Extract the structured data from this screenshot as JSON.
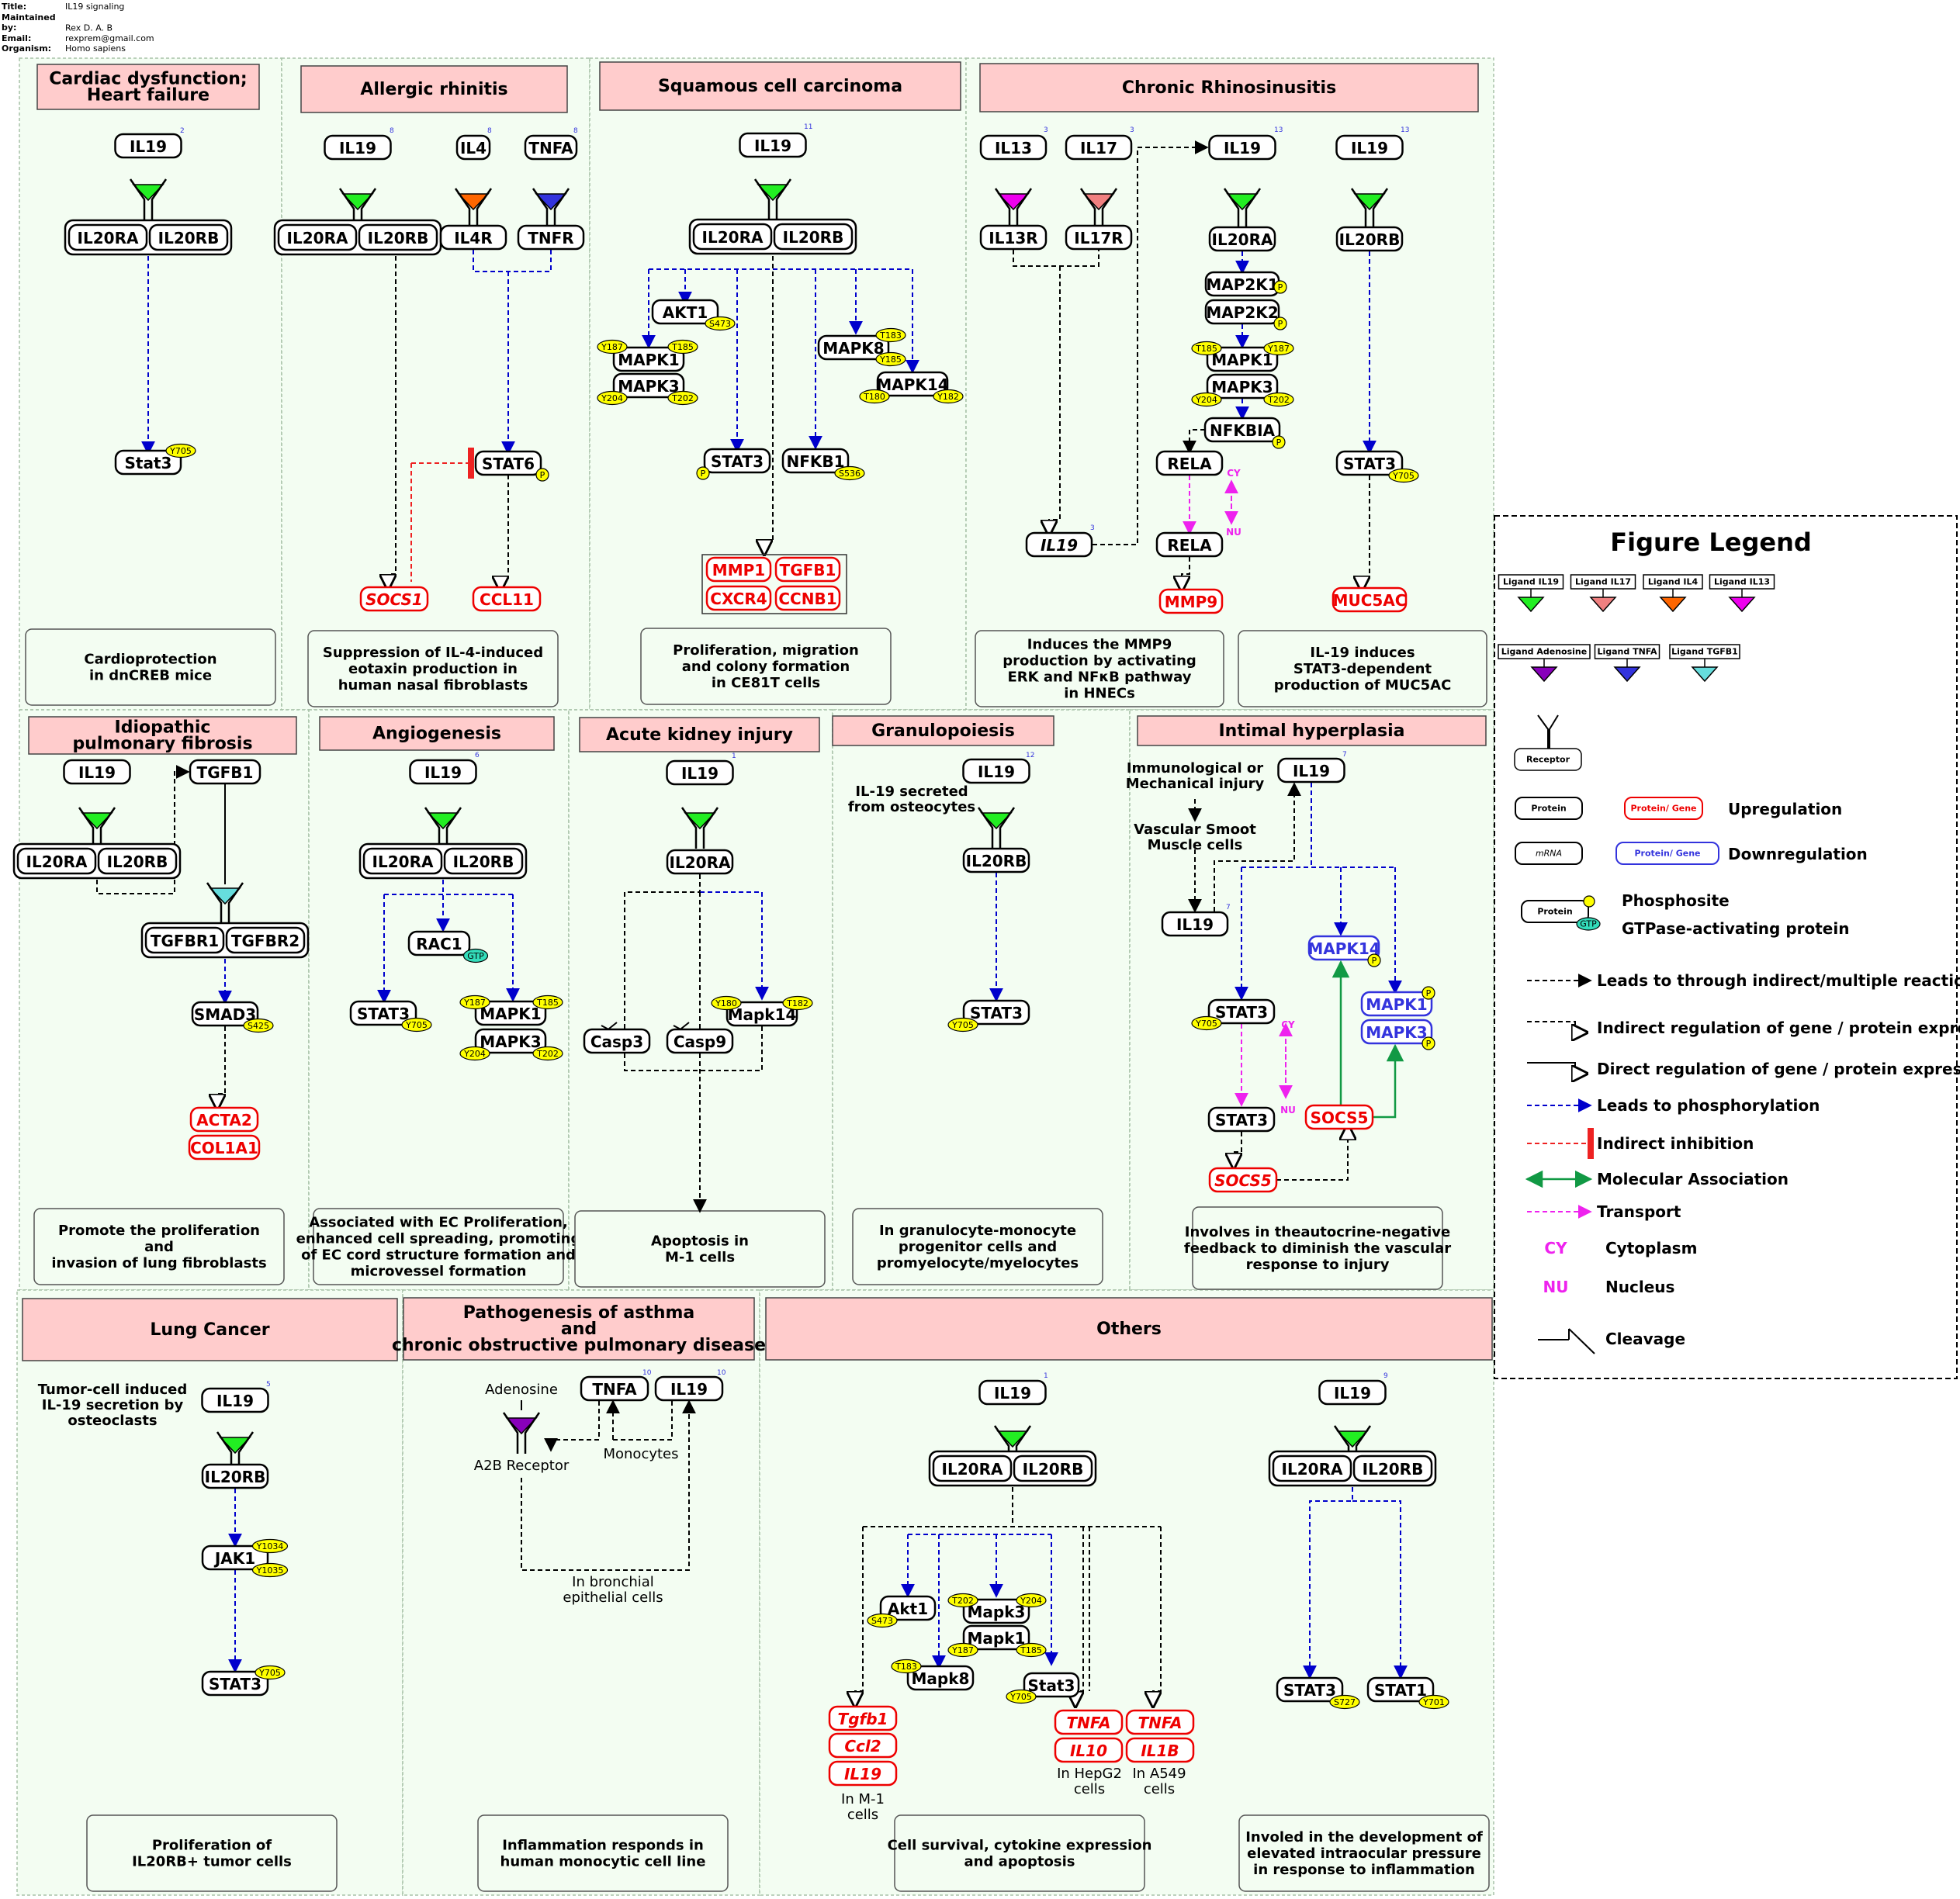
{
  "header": {
    "title_label": "Title:",
    "title": "IL19 signaling",
    "maintained_label": "Maintained by:",
    "maintained": "Rex D. A. B",
    "email_label": "Email:",
    "email": "rexprem@gmail.com",
    "organism_label": "Organism:",
    "organism": "Homo sapiens"
  },
  "colors": {
    "IL19": "#22ee22",
    "IL17": "#f08080",
    "IL4": "#ff6600",
    "IL13": "#ee00ee",
    "Adenosine": "#8800bb",
    "TNFA": "#3333dd",
    "TGFB1": "#66dddd",
    "panel": "#f3fdf2",
    "title": "#ffcccc",
    "phospho": "#ffff00",
    "gtp": "#33ddbb"
  },
  "panels": [
    {
      "id": "p1",
      "title": [
        "Cardiac dysfunction;",
        "Heart failure"
      ],
      "summary": [
        "Cardioprotection",
        "in dnCREB mice"
      ]
    },
    {
      "id": "p2",
      "title": [
        "Allergic rhinitis"
      ],
      "summary": [
        "Suppression of IL-4-induced",
        "eotaxin production in",
        "human nasal fibroblasts"
      ]
    },
    {
      "id": "p3",
      "title": [
        "Squamous cell carcinoma"
      ],
      "summary": [
        "Proliferation, migration",
        "and colony formation",
        "in CE81T cells"
      ]
    },
    {
      "id": "p4",
      "title": [
        "Chronic Rhinosinusitis"
      ],
      "summary": [
        "Induces the MMP9",
        "production by activating",
        "ERK and NFκB pathway",
        "in HNECs"
      ],
      "summary2": [
        "IL-19 induces",
        "STAT3-dependent",
        "production of MUC5AC"
      ]
    },
    {
      "id": "p5",
      "title": [
        "Idiopathic",
        "pulmonary fibrosis"
      ],
      "summary": [
        "Promote the proliferation",
        "and",
        "invasion of lung fibroblasts"
      ]
    },
    {
      "id": "p6",
      "title": [
        "Angiogenesis"
      ],
      "summary": [
        "Associated with EC Proliferation,",
        "enhanced cell spreading, promoting",
        "of EC cord structure formation and",
        "microvessel formation"
      ]
    },
    {
      "id": "p7",
      "title": [
        "Acute kidney injury"
      ],
      "summary": [
        "Apoptosis in",
        "M-1 cells"
      ]
    },
    {
      "id": "p8",
      "title": [
        "Granulopoiesis"
      ],
      "summary": [
        "In granulocyte-monocyte",
        "progenitor cells and",
        "promyelocyte/myelocytes"
      ]
    },
    {
      "id": "p9",
      "title": [
        "Intimal hyperplasia"
      ],
      "summary": [
        "Involves in theautocrine-negative",
        "feedback to diminish the vascular",
        "response to injury"
      ]
    },
    {
      "id": "p10",
      "title": [
        "Lung Cancer"
      ],
      "summary": [
        "Proliferation of",
        "IL20RB+ tumor cells"
      ]
    },
    {
      "id": "p11",
      "title": [
        "Pathogenesis of asthma",
        "and",
        "chronic obstructive pulmonary disease"
      ],
      "summary": [
        "Inflammation responds in",
        "human monocytic cell line"
      ]
    },
    {
      "id": "p12",
      "title": [
        "Others"
      ],
      "summary": [
        "Cell survival, cytokine expression",
        "and apoptosis"
      ],
      "summary2": [
        "Involed in the development of",
        "elevated intraocular pressure",
        "in response to inflammation"
      ]
    }
  ],
  "nodes": {
    "IL19": "IL19",
    "IL20RA": "IL20RA",
    "IL20RB": "IL20RB",
    "Stat3": "Stat3",
    "IL4": "IL4",
    "TNFA": "TNFA",
    "IL4R": "IL4R",
    "TNFR": "TNFR",
    "STAT6": "STAT6",
    "SOCS1": "SOCS1",
    "CCL11": "CCL11",
    "AKT1": "AKT1",
    "MAPK1": "MAPK1",
    "MAPK3": "MAPK3",
    "MAPK8": "MAPK8",
    "MAPK14": "MAPK14",
    "STAT3": "STAT3",
    "NFKB1": "NFKB1",
    "MMP1": "MMP1",
    "TGFB1": "TGFB1",
    "CXCR4": "CXCR4",
    "CCNB1": "CCNB1",
    "IL13": "IL13",
    "IL17": "IL17",
    "IL13R": "IL13R",
    "IL17R": "IL17R",
    "MAP2K1": "MAP2K1",
    "MAP2K2": "MAP2K2",
    "NFKBIA": "NFKBIA",
    "RELA": "RELA",
    "MMP9": "MMP9",
    "MUC5AC": "MUC5AC",
    "TGFBR1": "TGFBR1",
    "TGFBR2": "TGFBR2",
    "SMAD3": "SMAD3",
    "ACTA2": "ACTA2",
    "COL1A1": "COL1A1",
    "RAC1": "RAC1",
    "Casp3": "Casp3",
    "Casp9": "Casp9",
    "Mapk14": "Mapk14",
    "SOCS5": "SOCS5",
    "JAK1": "JAK1",
    "Akt1": "Akt1",
    "Mapk3": "Mapk3",
    "Mapk1": "Mapk1",
    "Mapk8": "Mapk8",
    "Tgfb1": "Tgfb1",
    "Ccl2": "Ccl2",
    "IL10": "IL10",
    "IL1B": "IL1B",
    "STAT1": "STAT1"
  },
  "sites": {
    "Y705": "Y705",
    "Y187": "Y187",
    "T185": "T185",
    "Y204": "Y204",
    "T202": "T202",
    "S473": "S473",
    "T183": "T183",
    "Y185": "Y185",
    "T180": "T180",
    "Y182": "Y182",
    "Y180": "Y180",
    "T182": "T182",
    "S536": "S536",
    "S425": "S425",
    "Y1034": "Y1034",
    "Y1035": "Y1035",
    "S727": "S727",
    "Y701": "Y701",
    "P": "P",
    "GTP": "GTP"
  },
  "citations": [
    "2",
    "8",
    "8",
    "8",
    "11",
    "3",
    "3",
    "3",
    "13",
    "3",
    "6",
    "1",
    "12",
    "7",
    "7",
    "5",
    "10",
    "10",
    "1",
    "9"
  ],
  "notes": {
    "osteocytes": [
      "IL-19 secreted",
      "from osteocytes"
    ],
    "immuno": [
      "Immunological or",
      "Mechanical injury"
    ],
    "vsmc": [
      "Vascular Smoot",
      "Muscle cells"
    ],
    "tumor": [
      "Tumor-cell induced",
      "IL-19 secretion by",
      "osteoclasts"
    ],
    "adenosine": "Adenosine",
    "a2b": "A2B Receptor",
    "monocytes": "Monocytes",
    "bronchial": [
      "In bronchial",
      "epithelial cells"
    ],
    "m1": [
      "In M-1",
      "cells"
    ],
    "hepg2": [
      "In HepG2",
      "cells"
    ],
    "a549": [
      "In A549",
      "cells"
    ],
    "cy": "CY",
    "nu": "NU"
  },
  "legend": {
    "title": "Figure Legend",
    "ligands": [
      "Ligand IL19",
      "Ligand IL17",
      "Ligand IL4",
      "Ligand IL13",
      "Ligand Adenosine",
      "Ligand TNFA",
      "Ligand TGFB1"
    ],
    "receptor": "Receptor",
    "protein": "Protein",
    "protein_gene": "Protein/ Gene",
    "mrna": "mRNA",
    "upregulation": "Upregulation",
    "downregulation": "Downregulation",
    "phospho": "Phosphosite",
    "gtpase": "GTPase-activating protein",
    "indirect": "Leads to through indirect/multiple reactions",
    "indirect_reg": "Indirect regulation of gene / protein expression",
    "direct_reg": "Direct regulation of gene / protein expression",
    "phosphorylation": "Leads to phosphorylation",
    "inhibition": "Indirect inhibition",
    "association": "Molecular Association",
    "transport": "Transport",
    "cy": "CY",
    "cytoplasm": "Cytoplasm",
    "nu": "NU",
    "nucleus": "Nucleus",
    "cleavage": "Cleavage"
  }
}
